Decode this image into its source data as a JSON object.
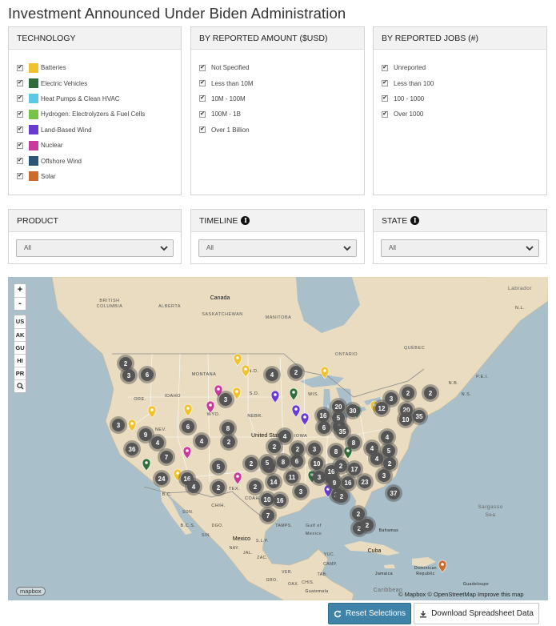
{
  "title": "Investment Announced Under Biden Administration",
  "panels": {
    "technology": {
      "title": "TECHNOLOGY",
      "items": [
        {
          "label": "Batteries",
          "color": "#f0c230"
        },
        {
          "label": "Electric Vehicles",
          "color": "#2e6e3a"
        },
        {
          "label": "Heat Pumps & Clean HVAC",
          "color": "#5bc8e6"
        },
        {
          "label": "Hydrogen: Electrolyzers & Fuel Cells",
          "color": "#77c34a"
        },
        {
          "label": "Land-Based Wind",
          "color": "#6a3bd3"
        },
        {
          "label": "Nuclear",
          "color": "#c93a9b"
        },
        {
          "label": "Offshore Wind",
          "color": "#2a5778"
        },
        {
          "label": "Solar",
          "color": "#cc6b2c"
        }
      ]
    },
    "amount": {
      "title": "BY REPORTED AMOUNT ($USD)",
      "items": [
        "Not Specified",
        "Less than 10M",
        "10M - 100M",
        "100M - 1B",
        "Over 1 Billion"
      ]
    },
    "jobs": {
      "title": "BY REPORTED JOBS (#)",
      "items": [
        "Unreported",
        "Less than 100",
        "100 - 1000",
        "Over 1000"
      ]
    },
    "product": {
      "title": "PRODUCT",
      "value": "All"
    },
    "timeline": {
      "title": "TIMELINE",
      "value": "All"
    },
    "state": {
      "title": "STATE",
      "value": "All"
    }
  },
  "map": {
    "zoom_in": "+",
    "zoom_out": "-",
    "regions": [
      "US",
      "AK",
      "GU",
      "HI",
      "PR"
    ],
    "labels": [
      {
        "text": "Canada"
      },
      {
        "text": "BRITISH"
      },
      {
        "text": "COLUMBIA"
      },
      {
        "text": "ALBERTA"
      },
      {
        "text": "SASKATCHEWAN"
      },
      {
        "text": "MANITOBA"
      },
      {
        "text": "ONTARIO"
      },
      {
        "text": "QUÉBEC"
      },
      {
        "text": "MONTANA"
      },
      {
        "text": "N.D."
      },
      {
        "text": "S.D."
      },
      {
        "text": "IDAHO"
      },
      {
        "text": "ORE."
      },
      {
        "text": "WYO."
      },
      {
        "text": "NEBR."
      },
      {
        "text": "WIS."
      },
      {
        "text": "NEV."
      },
      {
        "text": "CALIF."
      },
      {
        "text": "United States"
      },
      {
        "text": "IOWA"
      },
      {
        "text": "TEX."
      },
      {
        "text": "CHIH."
      },
      {
        "text": "B.C."
      },
      {
        "text": "B.C.S."
      },
      {
        "text": "Mexico"
      },
      {
        "text": "Gulf of"
      },
      {
        "text": "Mexico"
      },
      {
        "text": "Bahamas"
      },
      {
        "text": "Cuba"
      },
      {
        "text": "Sargasso"
      },
      {
        "text": "Sea"
      },
      {
        "text": "Jamaica"
      },
      {
        "text": "Dominican"
      },
      {
        "text": "Republic"
      },
      {
        "text": "Guadeloupe"
      },
      {
        "text": "Caribbean"
      },
      {
        "text": "Guatemala"
      },
      {
        "text": "Labrador"
      },
      {
        "text": "N.L."
      },
      {
        "text": "N.S."
      },
      {
        "text": "N.B."
      },
      {
        "text": "P.E.I."
      },
      {
        "text": "COAH."
      },
      {
        "text": "N.L."
      },
      {
        "text": "TAMPS."
      },
      {
        "text": "S.L.P."
      },
      {
        "text": "DGO."
      },
      {
        "text": "SIN."
      },
      {
        "text": "SON."
      },
      {
        "text": "NAY."
      },
      {
        "text": "JAL."
      },
      {
        "text": "ZAC."
      },
      {
        "text": "VER."
      },
      {
        "text": "GRO."
      },
      {
        "text": "OAX."
      },
      {
        "text": "CHIS."
      },
      {
        "text": "TAB."
      },
      {
        "text": "CAMP."
      },
      {
        "text": "YUC."
      }
    ],
    "clusters": [
      {
        "n": "2"
      },
      {
        "n": "3"
      },
      {
        "n": "6"
      },
      {
        "n": "3"
      },
      {
        "n": "9"
      },
      {
        "n": "36"
      },
      {
        "n": "4"
      },
      {
        "n": "7"
      },
      {
        "n": "24"
      },
      {
        "n": "16"
      },
      {
        "n": "4"
      },
      {
        "n": "6"
      },
      {
        "n": "4"
      },
      {
        "n": "8"
      },
      {
        "n": "2"
      },
      {
        "n": "3"
      },
      {
        "n": "5"
      },
      {
        "n": "2"
      },
      {
        "n": "2"
      },
      {
        "n": "3"
      },
      {
        "n": "4"
      },
      {
        "n": "2"
      },
      {
        "n": "5"
      },
      {
        "n": "8"
      },
      {
        "n": "2"
      },
      {
        "n": "14"
      },
      {
        "n": "11"
      },
      {
        "n": "10"
      },
      {
        "n": "16"
      },
      {
        "n": "7"
      },
      {
        "n": "6"
      },
      {
        "n": "2"
      },
      {
        "n": "3"
      },
      {
        "n": "10"
      },
      {
        "n": "3"
      },
      {
        "n": "5"
      },
      {
        "n": "16"
      },
      {
        "n": "9"
      },
      {
        "n": "16"
      },
      {
        "n": "17"
      },
      {
        "n": "2"
      },
      {
        "n": "3"
      },
      {
        "n": "8"
      },
      {
        "n": "8"
      },
      {
        "n": "6"
      },
      {
        "n": "35"
      },
      {
        "n": "20"
      },
      {
        "n": "5"
      },
      {
        "n": "3"
      },
      {
        "n": "16"
      },
      {
        "n": "22"
      },
      {
        "n": "23"
      },
      {
        "n": "2"
      },
      {
        "n": "2"
      },
      {
        "n": "2"
      },
      {
        "n": "2"
      },
      {
        "n": "37"
      },
      {
        "n": "4"
      },
      {
        "n": "4"
      },
      {
        "n": "5"
      },
      {
        "n": "4"
      },
      {
        "n": "2"
      },
      {
        "n": "3"
      },
      {
        "n": "12"
      },
      {
        "n": "3"
      },
      {
        "n": "20"
      },
      {
        "n": "10"
      },
      {
        "n": "35"
      },
      {
        "n": "2"
      },
      {
        "n": "2"
      },
      {
        "n": "30"
      },
      {
        "n": "2"
      },
      {
        "n": "4"
      }
    ],
    "attribution": "© Mapbox © OpenStreetMap Improve this map",
    "logo": "mapbox"
  },
  "buttons": {
    "reset": "Reset Selections",
    "download": "Download Spreadsheet Data"
  }
}
